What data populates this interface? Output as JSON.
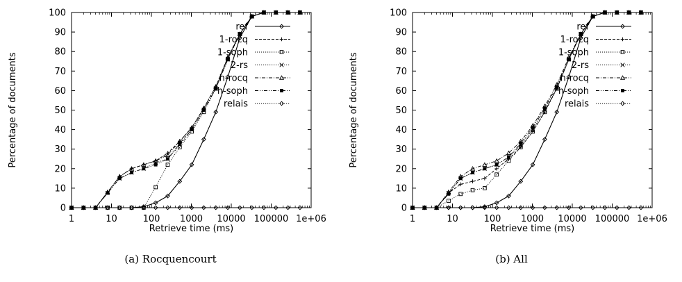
{
  "chart_data": [
    {
      "type": "line",
      "caption": "(a) Rocquencourt",
      "xlabel": "Retrieve time (ms)",
      "ylabel": "Percentage of documents",
      "xscale": "log",
      "xlim": [
        1,
        1000000
      ],
      "ylim": [
        0,
        100
      ],
      "x_ticks": [
        "1",
        "10",
        "100",
        "1000",
        "10000",
        "100000",
        "1e+06"
      ],
      "y_ticks": [
        "0",
        "10",
        "20",
        "30",
        "40",
        "50",
        "60",
        "70",
        "80",
        "90",
        "100"
      ],
      "legend_position": "top-right",
      "grid": false,
      "x": [
        1,
        2,
        4,
        8,
        16,
        32,
        64,
        128,
        256,
        512,
        1024,
        2048,
        4096,
        8192,
        16384,
        32768,
        65536,
        131072,
        262144,
        524288
      ],
      "series": [
        {
          "name": "ref",
          "marker": "diamond",
          "dash": "solid",
          "values": [
            0,
            0,
            0,
            0,
            0,
            0,
            0.5,
            2.5,
            6,
            13.5,
            22,
            35,
            49,
            67,
            87,
            98,
            100,
            100,
            100,
            100
          ]
        },
        {
          "name": "1-rocq",
          "marker": "plus",
          "dash": "dashed",
          "values": [
            0,
            0,
            0,
            8,
            16,
            20,
            22,
            24,
            28,
            34,
            41,
            51,
            62,
            77,
            89,
            98,
            100,
            100,
            100,
            100
          ]
        },
        {
          "name": "1-soph",
          "marker": "square",
          "dash": "dotted",
          "values": [
            0,
            0,
            0,
            0,
            0,
            0,
            0,
            10.5,
            22,
            31,
            39,
            49,
            61,
            76,
            89,
            98,
            100,
            100,
            100,
            100
          ]
        },
        {
          "name": "2-rs",
          "marker": "cross",
          "dash": "dotted",
          "values": [
            0,
            0,
            0,
            7.5,
            15,
            18,
            20,
            23,
            25,
            32,
            40,
            50,
            61,
            76,
            89,
            98,
            100,
            100,
            100,
            100
          ]
        },
        {
          "name": "h-rocq",
          "marker": "triangle",
          "dash": "dashdot",
          "values": [
            0,
            0,
            0,
            8,
            16,
            20,
            22,
            24,
            27,
            34,
            41,
            51,
            62,
            77,
            89,
            98,
            100,
            100,
            100,
            100
          ]
        },
        {
          "name": "h-soph",
          "marker": "filled-square",
          "dash": "dashdotdot",
          "values": [
            0,
            0,
            0,
            7.5,
            15,
            18,
            20,
            22,
            25,
            33,
            40,
            50,
            61,
            76,
            89,
            98,
            100,
            100,
            100,
            100
          ]
        },
        {
          "name": "relais",
          "marker": "diamond",
          "dash": "dotted",
          "values": [
            0,
            0,
            0,
            0,
            0,
            0,
            0,
            0,
            0,
            0,
            0,
            0,
            0,
            0,
            0,
            0,
            0,
            0,
            0,
            0
          ]
        }
      ]
    },
    {
      "type": "line",
      "caption": "(b) All",
      "xlabel": "Retrieve time (ms)",
      "ylabel": "Percentage of documents",
      "xscale": "log",
      "xlim": [
        1,
        1000000
      ],
      "ylim": [
        0,
        100
      ],
      "x_ticks": [
        "1",
        "10",
        "100",
        "1000",
        "10000",
        "100000",
        "1e+06"
      ],
      "y_ticks": [
        "0",
        "10",
        "20",
        "30",
        "40",
        "50",
        "60",
        "70",
        "80",
        "90",
        "100"
      ],
      "legend_position": "top-right",
      "grid": false,
      "x": [
        1,
        2,
        4,
        8,
        16,
        32,
        64,
        128,
        256,
        512,
        1024,
        2048,
        4096,
        8192,
        16384,
        32768,
        65536,
        131072,
        262144,
        524288
      ],
      "series": [
        {
          "name": "ref",
          "marker": "diamond",
          "dash": "solid",
          "values": [
            0,
            0,
            0,
            0,
            0,
            0,
            0.5,
            2.5,
            6,
            13.5,
            22,
            35,
            49,
            67,
            87,
            98,
            100,
            100,
            100,
            100
          ]
        },
        {
          "name": "1-rocq",
          "marker": "plus",
          "dash": "dashed",
          "values": [
            0,
            0,
            0,
            7.5,
            12,
            13.5,
            15,
            20,
            25,
            31,
            39,
            49,
            61,
            76,
            89,
            98,
            100,
            100,
            100,
            100
          ]
        },
        {
          "name": "1-soph",
          "marker": "square",
          "dash": "dotted",
          "values": [
            0,
            0,
            0,
            3.5,
            7,
            9,
            10,
            17,
            24,
            31,
            39,
            49,
            61,
            76,
            89,
            98,
            100,
            100,
            100,
            100
          ]
        },
        {
          "name": "2-rs",
          "marker": "cross",
          "dash": "dotted",
          "values": [
            0,
            0,
            0,
            7.5,
            15,
            18,
            20,
            22,
            26,
            32,
            40,
            50,
            61,
            76,
            89,
            98,
            100,
            100,
            100,
            100
          ]
        },
        {
          "name": "h-rocq",
          "marker": "triangle",
          "dash": "dashdot",
          "values": [
            0,
            0,
            0,
            8,
            16,
            20,
            22,
            24,
            28,
            34,
            42,
            52,
            63,
            77,
            89,
            98,
            100,
            100,
            100,
            100
          ]
        },
        {
          "name": "h-soph",
          "marker": "filled-square",
          "dash": "dashdotdot",
          "values": [
            0,
            0,
            0,
            7,
            15,
            18,
            20,
            22,
            26,
            33,
            41,
            51,
            62,
            76,
            89,
            98,
            100,
            100,
            100,
            100
          ]
        },
        {
          "name": "relais",
          "marker": "diamond",
          "dash": "dotted",
          "values": [
            0,
            0,
            0,
            0,
            0,
            0,
            0,
            0,
            0,
            0,
            0,
            0,
            0,
            0,
            0,
            0,
            0,
            0,
            0,
            0
          ]
        }
      ]
    }
  ]
}
